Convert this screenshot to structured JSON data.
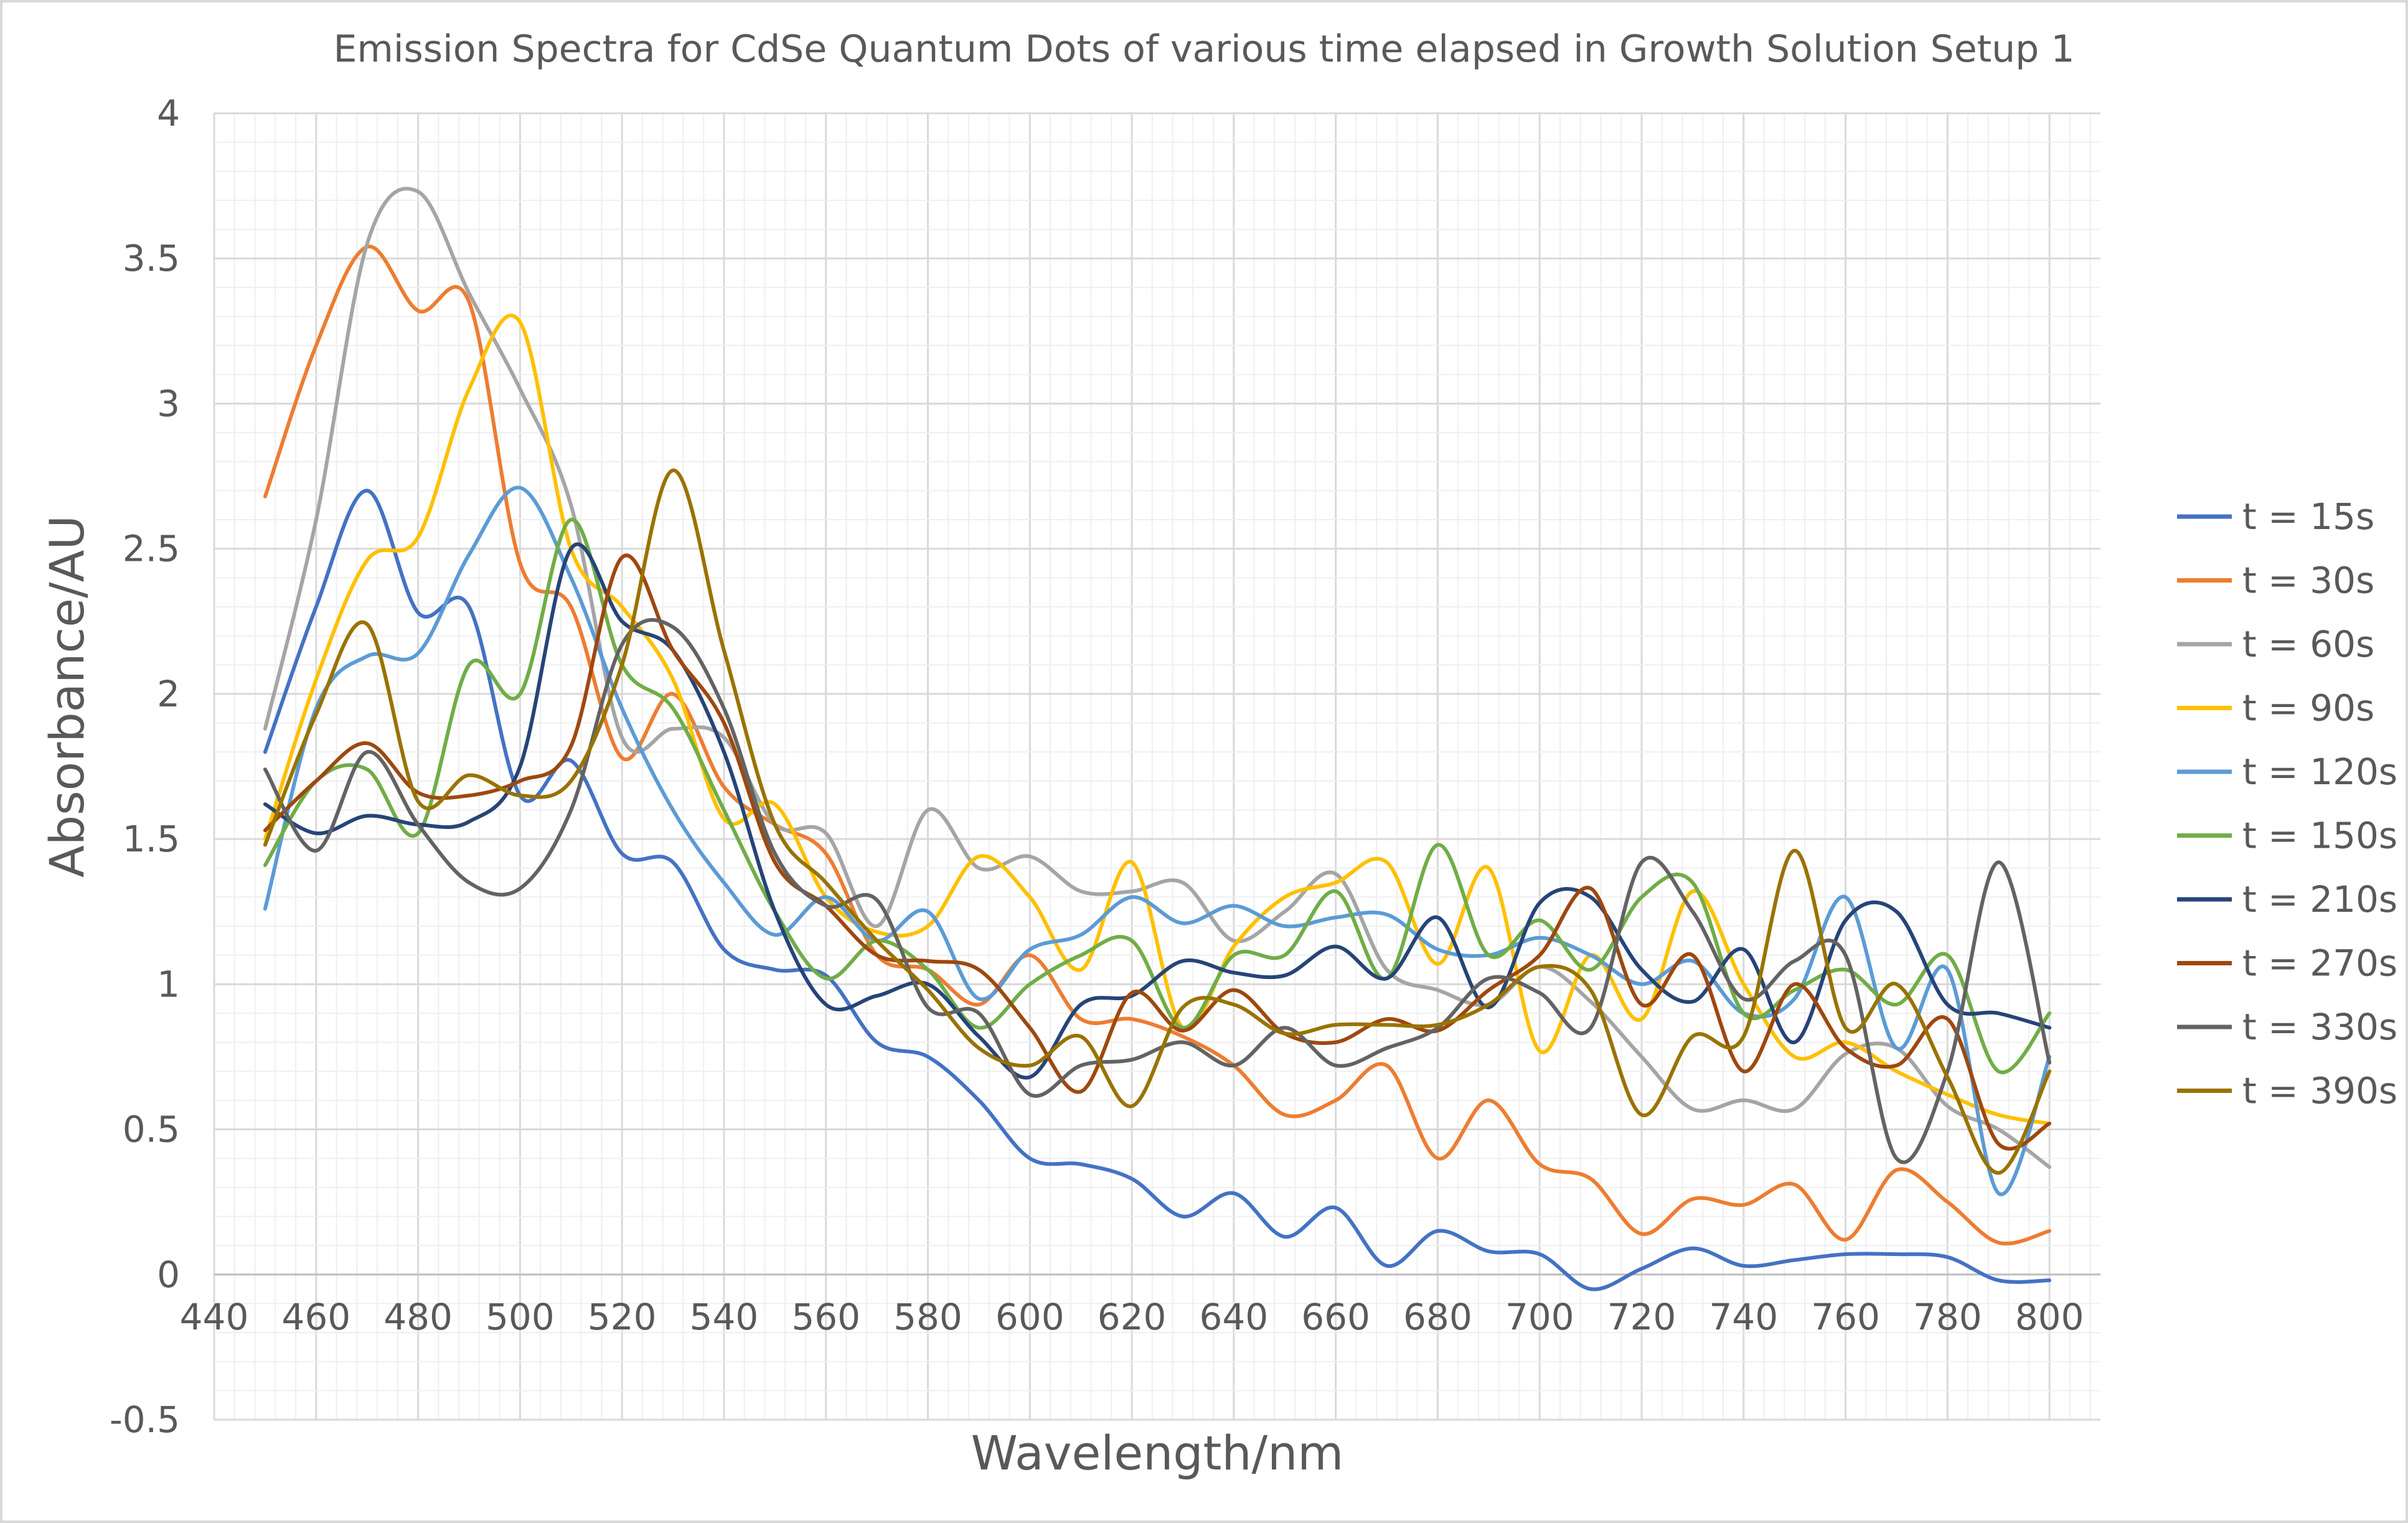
{
  "chart_data": {
    "type": "line",
    "title": "Emission Spectra for CdSe Quantum Dots of various time elapsed in Growth Solution Setup 1",
    "xlabel": "Wavelength/nm",
    "ylabel": "Absorbance/AU",
    "xlim": [
      440,
      810
    ],
    "ylim": [
      -0.5,
      4
    ],
    "xticks": [
      "440",
      "460",
      "480",
      "500",
      "520",
      "540",
      "560",
      "580",
      "600",
      "620",
      "640",
      "660",
      "680",
      "700",
      "720",
      "740",
      "760",
      "780",
      "800"
    ],
    "yticks": [
      "-0.5",
      "0",
      "0.5",
      "1",
      "1.5",
      "2",
      "2.5",
      "3",
      "3.5",
      "4"
    ],
    "grid": "major and minor",
    "legend_position": "right",
    "x": [
      450,
      460,
      470,
      480,
      490,
      500,
      510,
      520,
      530,
      540,
      550,
      560,
      570,
      580,
      590,
      600,
      610,
      620,
      630,
      640,
      650,
      660,
      670,
      680,
      690,
      700,
      710,
      720,
      730,
      740,
      750,
      760,
      770,
      780,
      790,
      800
    ],
    "series": [
      {
        "name": "t = 15s",
        "color": "#4472C4",
        "values": [
          1.8,
          2.3,
          2.7,
          2.28,
          2.3,
          1.65,
          1.77,
          1.45,
          1.42,
          1.12,
          1.05,
          1.03,
          0.8,
          0.75,
          0.6,
          0.4,
          0.38,
          0.33,
          0.2,
          0.28,
          0.13,
          0.23,
          0.03,
          0.15,
          0.08,
          0.07,
          -0.05,
          0.02,
          0.09,
          0.03,
          0.05,
          0.07,
          0.07,
          0.06,
          -0.02,
          -0.02
        ]
      },
      {
        "name": "t = 30s",
        "color": "#ED7D31",
        "values": [
          2.68,
          3.2,
          3.54,
          3.32,
          3.35,
          2.45,
          2.3,
          1.78,
          2.0,
          1.68,
          1.55,
          1.45,
          1.1,
          1.05,
          0.93,
          1.1,
          0.88,
          0.88,
          0.82,
          0.72,
          0.55,
          0.6,
          0.72,
          0.4,
          0.6,
          0.38,
          0.33,
          0.14,
          0.26,
          0.24,
          0.31,
          0.12,
          0.36,
          0.25,
          0.11,
          0.15
        ]
      },
      {
        "name": "t = 60s",
        "color": "#A5A5A5",
        "values": [
          1.88,
          2.6,
          3.55,
          3.73,
          3.38,
          3.05,
          2.65,
          1.85,
          1.88,
          1.85,
          1.55,
          1.52,
          1.2,
          1.6,
          1.4,
          1.44,
          1.32,
          1.32,
          1.35,
          1.15,
          1.25,
          1.38,
          1.05,
          0.98,
          0.93,
          1.06,
          0.94,
          0.75,
          0.57,
          0.6,
          0.57,
          0.76,
          0.78,
          0.58,
          0.5,
          0.37
        ]
      },
      {
        "name": "t = 90s",
        "color": "#FFC000",
        "values": [
          1.5,
          2.05,
          2.46,
          2.54,
          3.05,
          3.28,
          2.5,
          2.3,
          2.05,
          1.57,
          1.62,
          1.3,
          1.18,
          1.2,
          1.44,
          1.3,
          1.05,
          1.42,
          0.85,
          1.13,
          1.3,
          1.35,
          1.42,
          1.07,
          1.4,
          0.77,
          1.1,
          0.88,
          1.32,
          1.0,
          0.75,
          0.8,
          0.7,
          0.62,
          0.55,
          0.52
        ]
      },
      {
        "name": "t = 120s",
        "color": "#5B9BD5",
        "values": [
          1.26,
          1.95,
          2.13,
          2.14,
          2.48,
          2.71,
          2.4,
          1.95,
          1.6,
          1.35,
          1.17,
          1.3,
          1.15,
          1.25,
          0.95,
          1.12,
          1.17,
          1.3,
          1.21,
          1.27,
          1.2,
          1.23,
          1.24,
          1.12,
          1.1,
          1.16,
          1.1,
          1.0,
          1.08,
          0.9,
          0.95,
          1.3,
          0.78,
          1.05,
          0.28,
          0.75
        ]
      },
      {
        "name": "t = 150s",
        "color": "#70AD47",
        "values": [
          1.41,
          1.7,
          1.74,
          1.52,
          2.1,
          2.0,
          2.6,
          2.1,
          1.95,
          1.6,
          1.25,
          1.02,
          1.15,
          1.05,
          0.85,
          1.0,
          1.1,
          1.15,
          0.85,
          1.1,
          1.1,
          1.32,
          1.02,
          1.48,
          1.1,
          1.22,
          1.05,
          1.3,
          1.35,
          0.9,
          0.98,
          1.05,
          0.93,
          1.1,
          0.7,
          0.9
        ]
      },
      {
        "name": "t = 210s",
        "color": "#264478",
        "values": [
          1.62,
          1.52,
          1.58,
          1.55,
          1.56,
          1.75,
          2.5,
          2.25,
          2.15,
          1.8,
          1.25,
          0.93,
          0.96,
          1.0,
          0.82,
          0.68,
          0.93,
          0.96,
          1.08,
          1.04,
          1.03,
          1.13,
          1.02,
          1.23,
          0.92,
          1.28,
          1.3,
          1.05,
          0.94,
          1.12,
          0.8,
          1.22,
          1.25,
          0.93,
          0.9,
          0.85
        ]
      },
      {
        "name": "t = 270s",
        "color": "#9E480E",
        "values": [
          1.53,
          1.7,
          1.83,
          1.66,
          1.65,
          1.7,
          1.82,
          2.47,
          2.15,
          1.9,
          1.42,
          1.27,
          1.1,
          1.08,
          1.05,
          0.85,
          0.63,
          0.97,
          0.84,
          0.98,
          0.83,
          0.8,
          0.88,
          0.84,
          0.98,
          1.1,
          1.33,
          0.93,
          1.1,
          0.7,
          1.0,
          0.78,
          0.72,
          0.88,
          0.45,
          0.52
        ]
      },
      {
        "name": "t = 330s",
        "color": "#636363",
        "values": [
          1.74,
          1.46,
          1.8,
          1.55,
          1.35,
          1.33,
          1.6,
          2.17,
          2.23,
          1.95,
          1.45,
          1.27,
          1.29,
          0.92,
          0.9,
          0.62,
          0.72,
          0.74,
          0.8,
          0.72,
          0.85,
          0.72,
          0.78,
          0.85,
          1.02,
          0.97,
          0.85,
          1.42,
          1.25,
          0.95,
          1.08,
          1.1,
          0.4,
          0.7,
          1.42,
          0.73
        ]
      },
      {
        "name": "t = 390s",
        "color": "#997300",
        "values": [
          1.48,
          1.93,
          2.24,
          1.63,
          1.72,
          1.65,
          1.7,
          2.1,
          2.77,
          2.15,
          1.55,
          1.35,
          1.15,
          0.98,
          0.78,
          0.72,
          0.82,
          0.58,
          0.92,
          0.93,
          0.83,
          0.86,
          0.86,
          0.86,
          0.93,
          1.06,
          0.98,
          0.55,
          0.82,
          0.82,
          1.46,
          0.85,
          1.0,
          0.68,
          0.35,
          0.7
        ]
      }
    ]
  }
}
